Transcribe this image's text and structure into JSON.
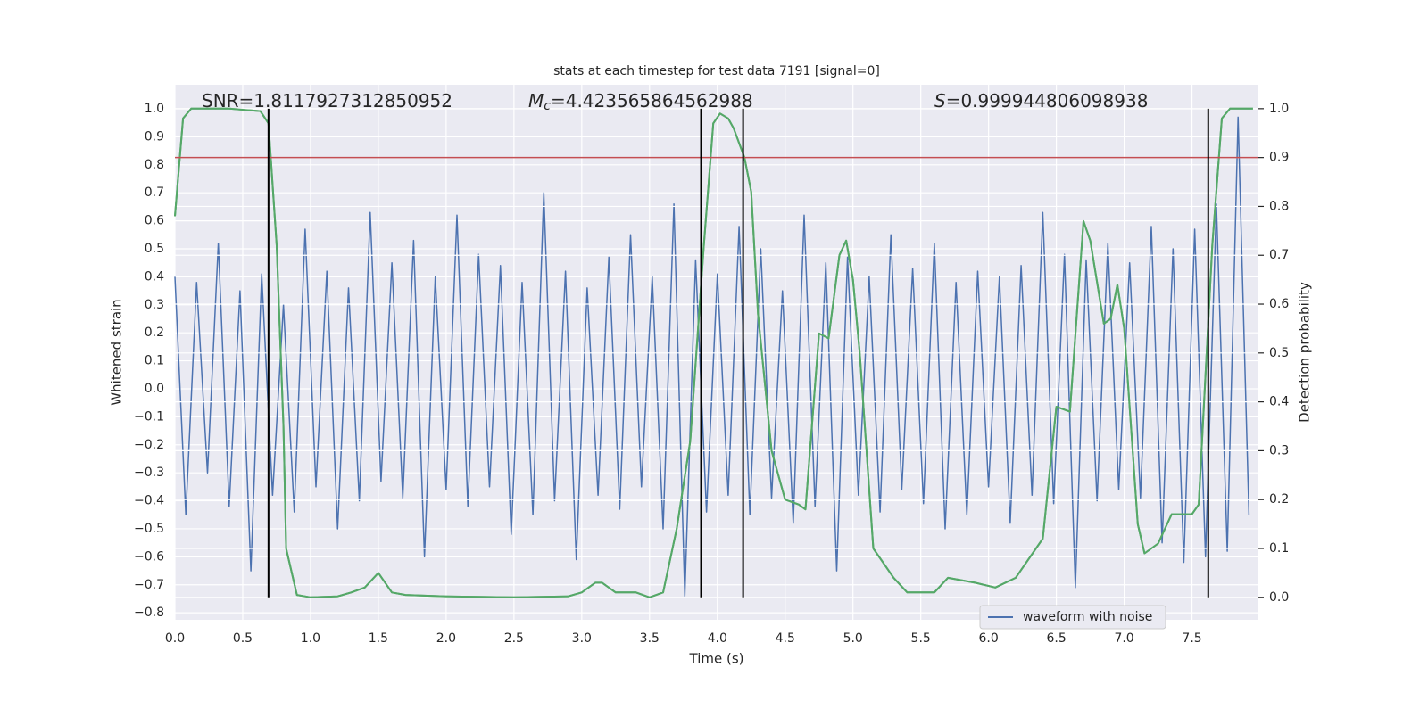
{
  "chart_data": {
    "type": "line",
    "title": "stats at each timestep for test data 7191 [signal=0]",
    "xlabel": "Time (s)",
    "ylabel": "Whitened strain",
    "y2label": "Detection probability",
    "xlim": [
      0,
      7.99
    ],
    "ylim": [
      -0.825,
      1.086
    ],
    "y2lim": [
      -0.046,
      1.049
    ],
    "grid": true,
    "legend": "lower right",
    "xticks": [
      {
        "value": 0,
        "label": "0.0"
      },
      {
        "value": 0.5,
        "label": "0.5"
      },
      {
        "value": 1,
        "label": "1.0"
      },
      {
        "value": 1.5,
        "label": "1.5"
      },
      {
        "value": 2,
        "label": "2.0"
      },
      {
        "value": 2.5,
        "label": "2.5"
      },
      {
        "value": 3,
        "label": "3.0"
      },
      {
        "value": 3.5,
        "label": "3.5"
      },
      {
        "value": 4,
        "label": "4.0"
      },
      {
        "value": 4.5,
        "label": "4.5"
      },
      {
        "value": 5,
        "label": "5.0"
      },
      {
        "value": 5.5,
        "label": "5.5"
      },
      {
        "value": 6,
        "label": "6.0"
      },
      {
        "value": 6.5,
        "label": "6.5"
      },
      {
        "value": 7,
        "label": "7.0"
      },
      {
        "value": 7.5,
        "label": "7.5"
      }
    ],
    "yticks": [
      {
        "value": -0.8,
        "label": "−0.8"
      },
      {
        "value": -0.7,
        "label": "−0.7"
      },
      {
        "value": -0.6,
        "label": "−0.6"
      },
      {
        "value": -0.5,
        "label": "−0.5"
      },
      {
        "value": -0.4,
        "label": "−0.4"
      },
      {
        "value": -0.3,
        "label": "−0.3"
      },
      {
        "value": -0.2,
        "label": "−0.2"
      },
      {
        "value": -0.1,
        "label": "−0.1"
      },
      {
        "value": 0,
        "label": "0.0"
      },
      {
        "value": 0.1,
        "label": "0.1"
      },
      {
        "value": 0.2,
        "label": "0.2"
      },
      {
        "value": 0.3,
        "label": "0.3"
      },
      {
        "value": 0.4,
        "label": "0.4"
      },
      {
        "value": 0.5,
        "label": "0.5"
      },
      {
        "value": 0.6,
        "label": "0.6"
      },
      {
        "value": 0.7,
        "label": "0.7"
      },
      {
        "value": 0.8,
        "label": "0.8"
      },
      {
        "value": 0.9,
        "label": "0.9"
      },
      {
        "value": 1,
        "label": "1.0"
      }
    ],
    "y2ticks": [
      {
        "value": 0,
        "label": "0.0"
      },
      {
        "value": 0.1,
        "label": "0.1"
      },
      {
        "value": 0.2,
        "label": "0.2"
      },
      {
        "value": 0.3,
        "label": "0.3"
      },
      {
        "value": 0.4,
        "label": "0.4"
      },
      {
        "value": 0.5,
        "label": "0.5"
      },
      {
        "value": 0.6,
        "label": "0.6"
      },
      {
        "value": 0.7,
        "label": "0.7"
      },
      {
        "value": 0.8,
        "label": "0.8"
      },
      {
        "value": 0.9,
        "label": "0.9"
      },
      {
        "value": 1,
        "label": "1.0"
      }
    ],
    "annotations": [
      {
        "text": "SNR=1.8117927312850952"
      },
      {
        "symbol": "M",
        "subscript": "c",
        "text": "=4.423565864562988"
      },
      {
        "symbol": "S",
        "text": "=0.999944806098938"
      }
    ],
    "threshold": {
      "value": 0.9,
      "axis": "y2",
      "color": "#c44e52"
    },
    "vlines": {
      "x": [
        0.69,
        3.88,
        4.19,
        7.62
      ],
      "span": [
        0,
        1
      ],
      "axis": "y2",
      "color": "#000000"
    },
    "series": [
      {
        "name": "waveform with noise",
        "color": "#4c72b0",
        "x": [
          0,
          0.08,
          0.16,
          0.24,
          0.32,
          0.4,
          0.48,
          0.56,
          0.64,
          0.72,
          0.8,
          0.88,
          0.96,
          1.04,
          1.12,
          1.2,
          1.28,
          1.36,
          1.44,
          1.52,
          1.6,
          1.68,
          1.76,
          1.84,
          1.92,
          2,
          2.08,
          2.16,
          2.24,
          2.32,
          2.4,
          2.48,
          2.56,
          2.64,
          2.72,
          2.8,
          2.88,
          2.96,
          3.04,
          3.12,
          3.2,
          3.28,
          3.36,
          3.44,
          3.52,
          3.6,
          3.68,
          3.76,
          3.84,
          3.92,
          4,
          4.08,
          4.16,
          4.24,
          4.32,
          4.4,
          4.48,
          4.56,
          4.64,
          4.72,
          4.8,
          4.88,
          4.96,
          5.04,
          5.12,
          5.2,
          5.28,
          5.36,
          5.44,
          5.52,
          5.6,
          5.68,
          5.76,
          5.84,
          5.92,
          6,
          6.08,
          6.16,
          6.24,
          6.32,
          6.4,
          6.48,
          6.56,
          6.64,
          6.72,
          6.8,
          6.88,
          6.96,
          7.04,
          7.12,
          7.2,
          7.28,
          7.36,
          7.44,
          7.52,
          7.6,
          7.68,
          7.76,
          7.84,
          7.92
        ],
        "values": [
          0.4,
          -0.45,
          0.38,
          -0.3,
          0.52,
          -0.42,
          0.35,
          -0.65,
          0.41,
          -0.38,
          0.3,
          -0.44,
          0.57,
          -0.35,
          0.42,
          -0.5,
          0.36,
          -0.4,
          0.63,
          -0.33,
          0.45,
          -0.39,
          0.53,
          -0.6,
          0.4,
          -0.36,
          0.62,
          -0.42,
          0.48,
          -0.35,
          0.44,
          -0.52,
          0.38,
          -0.45,
          0.7,
          -0.4,
          0.42,
          -0.61,
          0.36,
          -0.38,
          0.47,
          -0.43,
          0.55,
          -0.35,
          0.4,
          -0.5,
          0.66,
          -0.74,
          0.46,
          -0.44,
          0.41,
          -0.38,
          0.58,
          -0.45,
          0.5,
          -0.39,
          0.35,
          -0.48,
          0.62,
          -0.42,
          0.45,
          -0.65,
          0.47,
          -0.38,
          0.4,
          -0.44,
          0.55,
          -0.36,
          0.43,
          -0.41,
          0.52,
          -0.5,
          0.38,
          -0.45,
          0.42,
          -0.35,
          0.4,
          -0.48,
          0.44,
          -0.38,
          0.63,
          -0.41,
          0.48,
          -0.71,
          0.46,
          -0.4,
          0.52,
          -0.36,
          0.45,
          -0.39,
          0.58,
          -0.55,
          0.5,
          -0.62,
          0.57,
          -0.6,
          0.66,
          -0.58,
          0.97,
          -0.45
        ]
      },
      {
        "color": "#55a868",
        "axis": "y2",
        "x": [
          0,
          0.06,
          0.12,
          0.4,
          0.63,
          0.69,
          0.75,
          0.8,
          0.82,
          0.9,
          1,
          1.2,
          1.3,
          1.4,
          1.5,
          1.6,
          1.7,
          2,
          2.5,
          2.9,
          3,
          3.1,
          3.15,
          3.25,
          3.4,
          3.5,
          3.6,
          3.7,
          3.8,
          3.9,
          3.97,
          4.02,
          4.08,
          4.12,
          4.2,
          4.25,
          4.3,
          4.4,
          4.5,
          4.6,
          4.65,
          4.75,
          4.82,
          4.9,
          4.95,
          5,
          5.05,
          5.15,
          5.3,
          5.4,
          5.6,
          5.7,
          5.9,
          6.05,
          6.2,
          6.4,
          6.5,
          6.6,
          6.7,
          6.75,
          6.85,
          6.9,
          6.95,
          7,
          7.1,
          7.15,
          7.25,
          7.35,
          7.5,
          7.55,
          7.65,
          7.72,
          7.78,
          7.95
        ],
        "values": [
          0.78,
          0.98,
          1.0,
          1.0,
          0.995,
          0.97,
          0.72,
          0.35,
          0.1,
          0.005,
          0.0,
          0.002,
          0.01,
          0.02,
          0.05,
          0.01,
          0.005,
          0.002,
          0.0,
          0.002,
          0.01,
          0.03,
          0.03,
          0.01,
          0.01,
          0.0,
          0.01,
          0.14,
          0.32,
          0.72,
          0.97,
          0.99,
          0.98,
          0.96,
          0.9,
          0.83,
          0.58,
          0.3,
          0.2,
          0.19,
          0.18,
          0.54,
          0.53,
          0.7,
          0.73,
          0.65,
          0.5,
          0.1,
          0.04,
          0.01,
          0.01,
          0.04,
          0.03,
          0.02,
          0.04,
          0.12,
          0.39,
          0.38,
          0.77,
          0.73,
          0.56,
          0.57,
          0.64,
          0.55,
          0.15,
          0.09,
          0.11,
          0.17,
          0.17,
          0.19,
          0.72,
          0.98,
          1.0,
          1.0
        ]
      }
    ]
  }
}
